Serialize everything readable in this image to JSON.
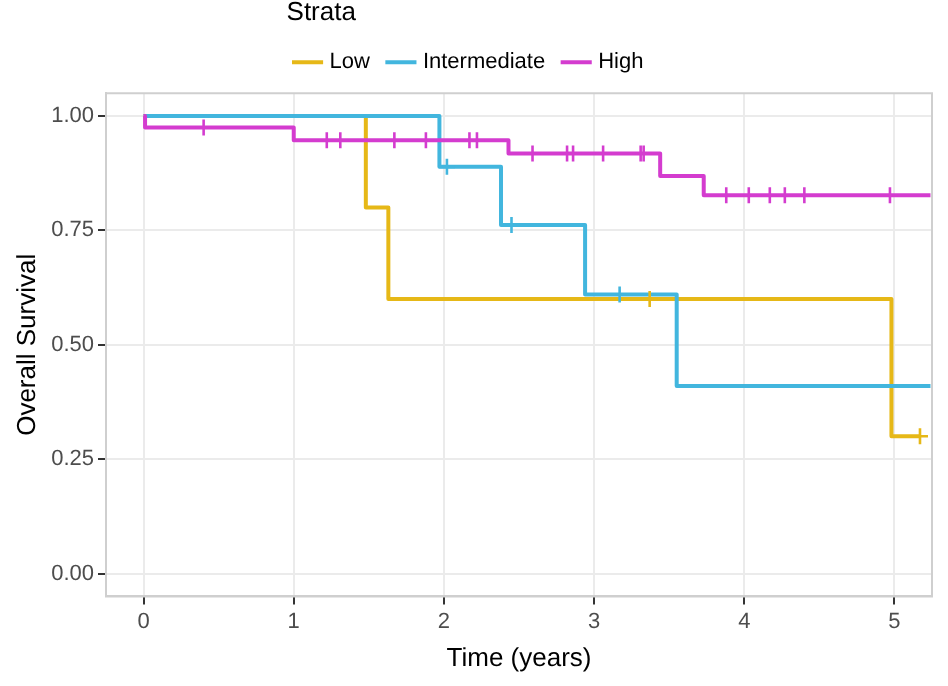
{
  "chart_data": {
    "type": "step",
    "xlabel": "Time (years)",
    "ylabel": "Overall Survival",
    "legend_title": "Strata",
    "legend": "top",
    "grid": true,
    "xlim": [
      -0.25,
      5.25
    ],
    "xticks": [
      0,
      1,
      2,
      3,
      4,
      5
    ],
    "ylim": [
      -0.05,
      1.05
    ],
    "yticks": [
      {
        "value": 0,
        "label": "0.00"
      },
      {
        "value": 0.25,
        "label": "0.25"
      },
      {
        "value": 0.5,
        "label": "0.50"
      },
      {
        "value": 0.75,
        "label": "0.75"
      },
      {
        "value": 1,
        "label": "1.00"
      }
    ],
    "series": [
      {
        "name": "Low",
        "color": "#e6b817",
        "x": [
          0,
          1.48,
          1.63,
          4.98,
          5.17
        ],
        "values": [
          1,
          0.8,
          0.6,
          0.3,
          0.3
        ]
      },
      {
        "name": "Intermediate",
        "color": "#42b6de",
        "x": [
          0,
          1.97,
          2.38,
          2.94,
          3.55,
          5.24
        ],
        "values": [
          1,
          0.889,
          0.762,
          0.61,
          0.41,
          0.41
        ]
      },
      {
        "name": "High",
        "color": "#d43ccf",
        "x": [
          0,
          0.01,
          1.0,
          2.43,
          3.44,
          3.73,
          5.24
        ],
        "values": [
          1,
          0.975,
          0.947,
          0.918,
          0.869,
          0.827,
          0.827
        ]
      },
      {
        "type": "scatter",
        "marker": "cross",
        "color": "#e6b817",
        "x": [
          3.37,
          5.17
        ],
        "values": [
          0.6,
          0.3
        ]
      },
      {
        "type": "scatter",
        "marker": "cross",
        "color": "#42b6de",
        "x": [
          2.02,
          2.45,
          3.17
        ],
        "values": [
          0.889,
          0.762,
          0.61
        ]
      },
      {
        "type": "scatter",
        "marker": "cross",
        "color": "#d43ccf",
        "x": [
          0.4,
          1.22,
          1.31,
          1.67,
          1.88,
          2.17,
          2.22,
          2.59,
          2.82,
          2.86,
          3.06,
          3.31,
          3.33,
          3.88,
          4.03,
          4.17,
          4.27,
          4.4,
          4.97
        ],
        "values": [
          0.975,
          0.947,
          0.947,
          0.947,
          0.947,
          0.947,
          0.947,
          0.918,
          0.918,
          0.918,
          0.918,
          0.918,
          0.918,
          0.827,
          0.827,
          0.827,
          0.827,
          0.827,
          0.827
        ]
      }
    ]
  }
}
